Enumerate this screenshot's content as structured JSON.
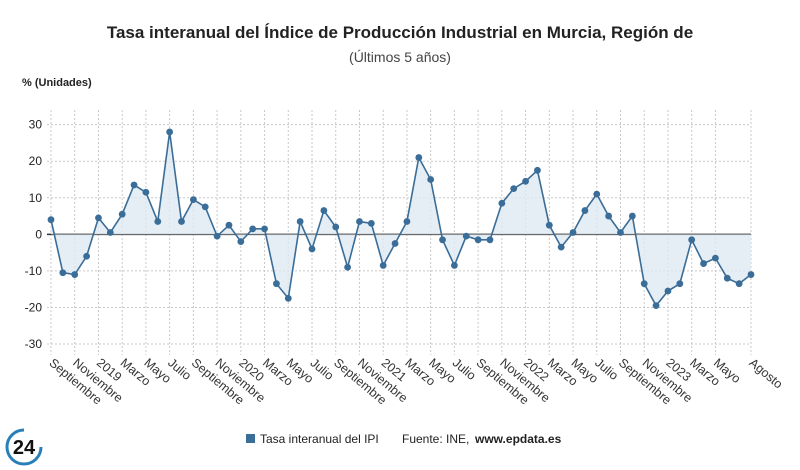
{
  "chart_data": {
    "type": "line",
    "title": "Tasa interanual del Índice de Producción Industrial en Murcia, Región de",
    "subtitle": "(Últimos 5 años)",
    "y_label": "% (Unidades)",
    "categories": [
      "Septiembre",
      null,
      "Noviembre",
      null,
      "2019",
      null,
      "Marzo",
      null,
      "Mayo",
      null,
      "Julio",
      null,
      "Septiembre",
      null,
      "Noviembre",
      null,
      "2020",
      null,
      "Marzo",
      null,
      "Mayo",
      null,
      "Julio",
      null,
      "Septiembre",
      null,
      "Noviembre",
      null,
      "2021",
      null,
      "Marzo",
      null,
      "Mayo",
      null,
      "Julio",
      null,
      "Septiembre",
      null,
      "Noviembre",
      null,
      "2022",
      null,
      "Marzo",
      null,
      "Mayo",
      null,
      "Julio",
      null,
      "Septiembre",
      null,
      "Noviembre",
      null,
      "2023",
      null,
      "Marzo",
      null,
      "Mayo",
      null,
      null,
      "Agosto"
    ],
    "series": [
      {
        "name": "Tasa interanual del IPI",
        "color": "#3a6d97",
        "values": [
          4,
          -10.5,
          -11,
          -6,
          4.5,
          0.5,
          5.5,
          13.5,
          11.5,
          3.5,
          28,
          3.5,
          9.5,
          7.5,
          -0.5,
          2.5,
          -2,
          1.5,
          1.5,
          -13.5,
          -17.5,
          3.5,
          -4,
          6.5,
          2,
          -9,
          3.5,
          3,
          -8.5,
          -2.5,
          3.5,
          21,
          15,
          -1.5,
          -8.5,
          -0.5,
          -1.5,
          -1.5,
          8.5,
          12.5,
          14.5,
          17.5,
          2.5,
          -3.5,
          0.5,
          6.5,
          11,
          5,
          0.5,
          5,
          -13.5,
          -19.5,
          -15.5,
          -13.5,
          -1.5,
          -8,
          -6.5,
          -12,
          -13.5,
          -11
        ]
      }
    ],
    "ylim": [
      -33,
      34
    ],
    "yticks": [
      -30,
      -20,
      -10,
      0,
      10,
      20,
      30
    ],
    "grid": true,
    "area_fill": "#dfe9f3",
    "source_label": "Fuente: INE,",
    "source_url": "www.epdata.es",
    "logo": "24"
  }
}
